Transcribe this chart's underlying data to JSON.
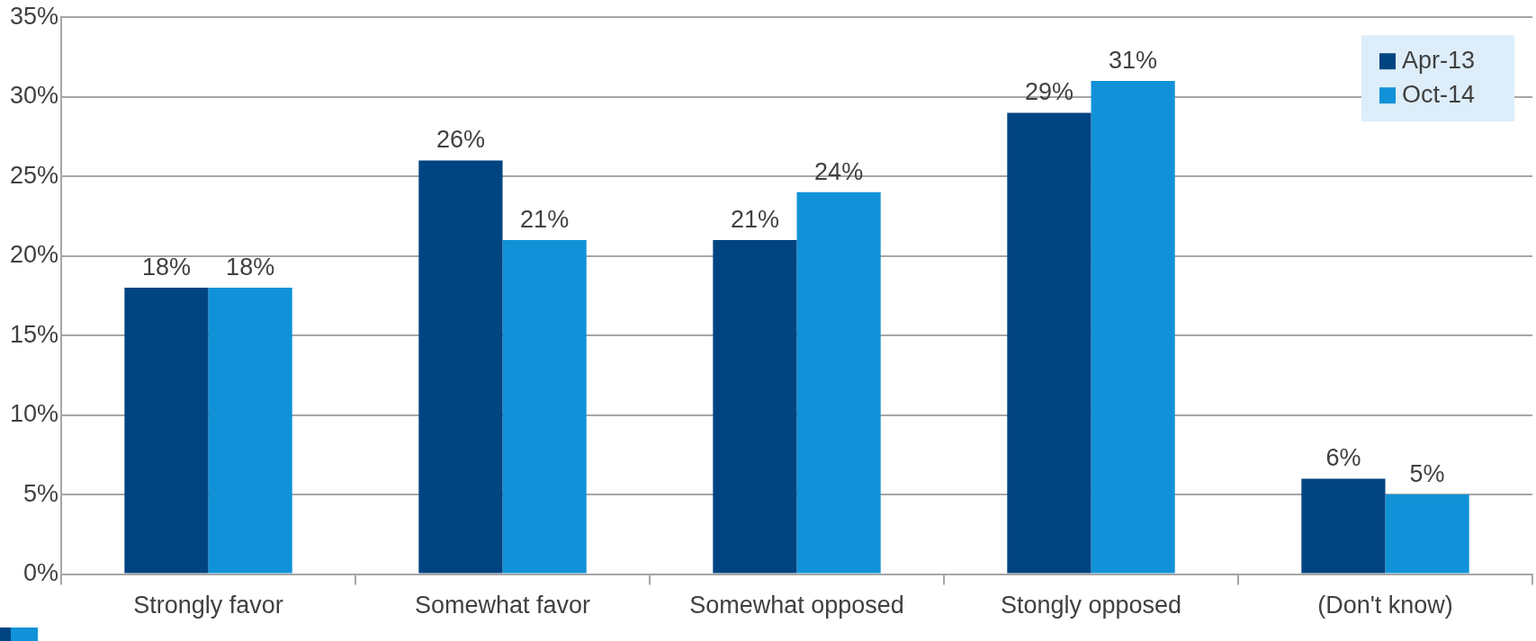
{
  "chart_data": {
    "type": "bar",
    "categories": [
      "Strongly favor",
      "Somewhat favor",
      "Somewhat opposed",
      "Stongly opposed",
      "(Don't know)"
    ],
    "series": [
      {
        "name": "Apr-13",
        "color": "#004481",
        "values": [
          18,
          26,
          21,
          29,
          6
        ],
        "value_labels": [
          "18%",
          "26%",
          "21%",
          "29%",
          "6%"
        ]
      },
      {
        "name": "Oct-14",
        "color": "#1192d8",
        "values": [
          18,
          21,
          24,
          31,
          5
        ],
        "value_labels": [
          "18%",
          "21%",
          "24%",
          "31%",
          "5%"
        ]
      }
    ],
    "ylim": [
      0,
      35
    ],
    "yticks": [
      {
        "value": 0,
        "label": "0%"
      },
      {
        "value": 5,
        "label": "5%"
      },
      {
        "value": 10,
        "label": "10%"
      },
      {
        "value": 15,
        "label": "15%"
      },
      {
        "value": 20,
        "label": "20%"
      },
      {
        "value": 25,
        "label": "25%"
      },
      {
        "value": 30,
        "label": "30%"
      },
      {
        "value": 35,
        "label": "35%"
      }
    ],
    "grid": "y",
    "legend": "top right"
  }
}
